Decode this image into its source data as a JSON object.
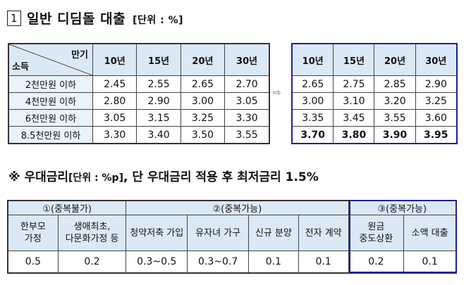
{
  "section1": {
    "num": "1",
    "title": "일반 디딤돌 대출",
    "unit": "[단위 : %]"
  },
  "table1": {
    "corner_top": "만기",
    "corner_bottom": "소득",
    "headers": [
      "10년",
      "15년",
      "20년",
      "30년"
    ],
    "rows": [
      {
        "label": "2천만원 이하",
        "values": [
          "2.45",
          "2.55",
          "2.65",
          "2.70"
        ]
      },
      {
        "label": "4천만원 이하",
        "values": [
          "2.80",
          "2.90",
          "3.00",
          "3.05"
        ]
      },
      {
        "label": "6천만원 이하",
        "values": [
          "3.05",
          "3.15",
          "3.25",
          "3.30"
        ]
      },
      {
        "label": "8.5천만원 이하",
        "values": [
          "3.30",
          "3.40",
          "3.50",
          "3.55"
        ]
      }
    ]
  },
  "arrow": "⇨",
  "table2": {
    "headers": [
      "10년",
      "15년",
      "20년",
      "30년"
    ],
    "rows": [
      [
        "2.65",
        "2.75",
        "2.85",
        "2.90"
      ],
      [
        "3.00",
        "3.10",
        "3.20",
        "3.25"
      ],
      [
        "3.35",
        "3.45",
        "3.55",
        "3.60"
      ],
      [
        "3.70",
        "3.80",
        "3.90",
        "3.95"
      ]
    ]
  },
  "section2": {
    "title_a": "※ 우대금리",
    "unit": "[단위 : %p]",
    "title_b": ", 단 우대금리 적용 후 최저금리 1.5%"
  },
  "table3": {
    "groups": [
      "①(중복불가)",
      "②(중복가능)",
      "③(중복가능)"
    ],
    "items": [
      "한부모\n가정",
      "생애최초,\n다문화가정 등",
      "청약저축 가입",
      "유자녀 가구",
      "신규 분양",
      "전자 계약",
      "원금\n중도상환",
      "소액 대출"
    ],
    "values": [
      "0.5",
      "0.2",
      "0.3~0.5",
      "0.3~0.7",
      "0.1",
      "0.1",
      "0.2",
      "0.1"
    ]
  }
}
